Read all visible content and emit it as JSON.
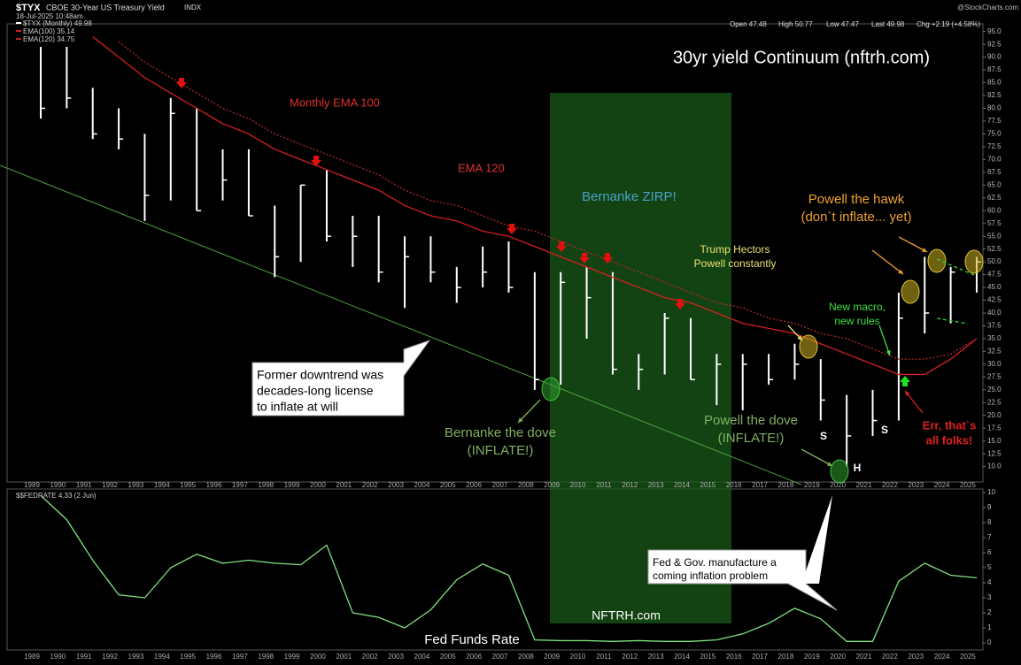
{
  "chart_data": [
    {
      "type": "ohlc",
      "title": "30yr yield Continuum (nftrh.com)",
      "symbol": "$TYX",
      "name": "CBOE 30-Year US Treasury Yield",
      "exchange": "INDX",
      "date": "18-Jul-2025 10:48am",
      "quote": [
        "Open 47.48",
        "High 50.77",
        "Low 47.47",
        "Last 49.98",
        "Chg +2.19 (+4.58%)"
      ],
      "source": "@StockCharts.com",
      "categories": [
        "1989",
        "1990",
        "1991",
        "1992",
        "1993",
        "1994",
        "1995",
        "1996",
        "1997",
        "1998",
        "1999",
        "2000",
        "2001",
        "2002",
        "2003",
        "2004",
        "2005",
        "2006",
        "2007",
        "2008",
        "2009",
        "2010",
        "2011",
        "2012",
        "2013",
        "2014",
        "2015",
        "2016",
        "2017",
        "2018",
        "2019",
        "2020",
        "2021",
        "2022",
        "2023",
        "2024",
        "2025"
      ],
      "series": [
        {
          "name": "$TYX (Monthly) 49.98",
          "color": "#ffffff",
          "high": [
            92,
            92,
            84,
            80,
            75,
            82,
            80,
            72,
            72,
            61,
            65,
            68,
            59,
            59,
            55,
            55,
            49,
            53,
            54,
            48,
            48,
            49,
            48,
            32,
            40,
            39,
            32,
            32,
            32,
            34,
            31,
            24,
            25,
            44,
            51,
            49,
            51
          ],
          "low": [
            78,
            80,
            74,
            72,
            58,
            62,
            60,
            62,
            59,
            47,
            50,
            54,
            49,
            46,
            41,
            46,
            42,
            45,
            44,
            25,
            26,
            35,
            28,
            25,
            28,
            27,
            22,
            21,
            26,
            27,
            19,
            10,
            16,
            19,
            36,
            38,
            44
          ],
          "values": [
            80,
            82,
            75,
            74,
            63,
            79,
            60,
            66,
            59,
            51,
            65,
            55,
            55,
            48,
            51,
            48,
            45,
            48,
            45,
            27,
            46,
            43,
            29,
            29,
            39,
            27,
            30,
            30,
            27,
            30,
            23,
            16,
            19,
            39,
            40,
            48,
            50
          ]
        },
        {
          "name": "EMA(100) 35.14",
          "color": "#d42020",
          "dashed": false,
          "values": [
            null,
            null,
            94,
            90,
            86,
            83,
            80,
            77,
            75,
            72,
            70,
            68,
            66,
            64,
            61,
            59,
            58,
            56,
            55,
            53,
            51,
            49,
            47,
            45,
            43,
            42,
            40,
            38,
            37,
            36,
            34,
            32,
            30,
            28,
            28,
            31,
            35
          ]
        },
        {
          "name": "EMA(120) 34.75",
          "color": "#b02828",
          "dashed": true,
          "values": [
            null,
            null,
            null,
            93,
            89,
            86,
            83,
            80,
            78,
            75,
            73,
            71,
            69,
            67,
            64,
            62,
            61,
            59,
            57,
            56,
            54,
            52,
            50,
            48,
            46,
            44,
            42,
            41,
            39,
            38,
            36,
            35,
            33,
            31,
            31,
            32,
            35
          ]
        }
      ],
      "ylim": [
        7,
        96.5
      ],
      "yticks": [
        {
          "value": 10,
          "label": "10.0"
        },
        12.5,
        {
          "value": 15,
          "label": "15.0"
        },
        17.5,
        {
          "value": 20,
          "label": "20.0"
        },
        22.5,
        {
          "value": 25,
          "label": "25.0"
        },
        27.5,
        {
          "value": 30,
          "label": "30.0"
        },
        32.5,
        {
          "value": 35,
          "label": "35.0"
        },
        37.5,
        {
          "value": 40,
          "label": "40.0"
        },
        42.5,
        {
          "value": 45,
          "label": "45.0"
        },
        47.5,
        {
          "value": 50,
          "label": "50.0"
        },
        52.5,
        {
          "value": 55,
          "label": "55.0"
        },
        57.5,
        {
          "value": 60,
          "label": "60.0"
        },
        62.5,
        {
          "value": 65,
          "label": "65.0"
        },
        67.5,
        {
          "value": 70,
          "label": "70.0"
        },
        72.5,
        {
          "value": 75,
          "label": "75.0"
        },
        77.5,
        {
          "value": 80,
          "label": "80.0"
        },
        82.5,
        {
          "value": 85,
          "label": "85.0"
        },
        87.5,
        {
          "value": 90,
          "label": "90.0"
        },
        92.5,
        {
          "value": 95,
          "label": "95.0"
        }
      ],
      "annotations": [
        {
          "lines": [
            "Monthly EMA 100"
          ],
          "color": "#e03030"
        },
        {
          "lines": [
            "EMA 120"
          ],
          "color": "#e03030"
        },
        {
          "lines": [
            "Bernanke ZIRP!"
          ],
          "color": "#4aa0c8"
        },
        {
          "lines": [
            "Trump Hectors",
            "Powell constantly"
          ],
          "color": "#e8e070"
        },
        {
          "lines": [
            "Powell the hawk",
            "(don`t inflate... yet)"
          ],
          "color": "#f0a030"
        },
        {
          "lines": [
            "New macro,",
            "new rules"
          ],
          "color": "#40e040"
        },
        {
          "lines": [
            "Former downtrend was",
            "decades-long license",
            "to inflate at will"
          ],
          "color": "#000000"
        },
        {
          "lines": [
            "Bernanke the dove",
            "(INFLATE!)"
          ],
          "color": "#80b060"
        },
        {
          "lines": [
            "Powell the dove",
            "(INFLATE!)"
          ],
          "color": "#80b060"
        },
        {
          "lines": [
            "S"
          ],
          "color": "#ffffff"
        },
        {
          "lines": [
            "S"
          ],
          "color": "#ffffff"
        },
        {
          "lines": [
            "H"
          ],
          "color": "#ffffff"
        },
        {
          "lines": [
            "Err, that`s",
            "all folks!"
          ],
          "color": "#e02020"
        },
        {
          "lines": [
            "Fed & Gov. manufacture a",
            "coming inflation problem"
          ],
          "color": "#000000"
        },
        {
          "lines": [
            "NFTRH.com"
          ],
          "color": "#ffffff"
        },
        {
          "lines": [
            "Fed Funds Rate"
          ],
          "color": "#ffffff"
        }
      ]
    },
    {
      "type": "line",
      "categories": [
        "1989",
        "1990",
        "1991",
        "1992",
        "1993",
        "1994",
        "1995",
        "1996",
        "1997",
        "1998",
        "1999",
        "2000",
        "2001",
        "2002",
        "2003",
        "2004",
        "2005",
        "2006",
        "2007",
        "2008",
        "2009",
        "2010",
        "2011",
        "2012",
        "2013",
        "2014",
        "2015",
        "2016",
        "2017",
        "2018",
        "2019",
        "2020",
        "2021",
        "2022",
        "2023",
        "2024",
        "2025"
      ],
      "series": [
        {
          "name": "$$FEDRATE 4.33 (2 Jun)",
          "color": "#80e080",
          "values": [
            9.8,
            8.2,
            5.5,
            3.2,
            3,
            5,
            5.9,
            5.3,
            5.5,
            5.3,
            5.2,
            6.5,
            2,
            1.7,
            1,
            2.2,
            4.2,
            5.25,
            4.5,
            0.2,
            0.15,
            0.15,
            0.1,
            0.15,
            0.1,
            0.1,
            0.2,
            0.6,
            1.3,
            2.3,
            1.6,
            0.1,
            0.1,
            4.1,
            5.3,
            4.5,
            4.33
          ]
        }
      ],
      "ylim": [
        0,
        10
      ],
      "yticks": [
        0,
        1,
        2,
        3,
        4,
        5,
        6,
        7,
        8,
        9,
        10
      ]
    }
  ]
}
